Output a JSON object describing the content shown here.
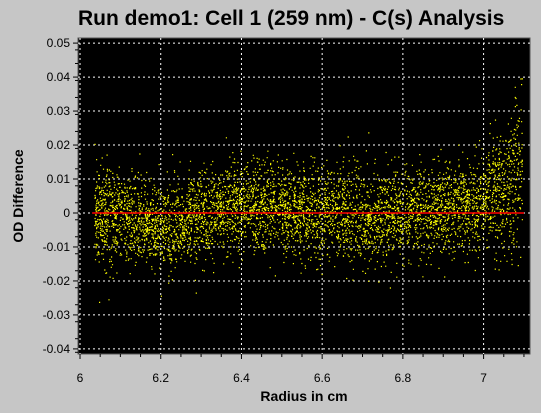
{
  "chart_data": {
    "type": "scatter",
    "title": "Run demo1: Cell 1 (259 nm) - C(s) Analysis",
    "xlabel": "Radius in cm",
    "ylabel": "OD Difference",
    "xlim": [
      5.995,
      7.115
    ],
    "ylim": [
      -0.0415,
      0.0515
    ],
    "x_ticks": [
      6,
      6.2,
      6.4,
      6.6,
      6.8,
      7
    ],
    "x_tick_labels": [
      "6",
      "6.2",
      "6.4",
      "6.6",
      "6.8",
      "7"
    ],
    "y_ticks": [
      -0.04,
      -0.03,
      -0.02,
      -0.01,
      0,
      0.01,
      0.02,
      0.03,
      0.04,
      0.05
    ],
    "y_tick_labels": [
      "-0.04",
      "-0.03",
      "-0.02",
      "-0.01",
      "0",
      "0.01",
      "0.02",
      "0.03",
      "0.04",
      "0.05"
    ],
    "grid": true,
    "series": [
      {
        "style": "points",
        "color": "#ffff00",
        "x_range": [
          6.035,
          7.095
        ],
        "center_curve": [
          [
            6.04,
            0.0
          ],
          [
            6.1,
            -0.001
          ],
          [
            6.2,
            -0.004
          ],
          [
            6.3,
            -0.001
          ],
          [
            6.4,
            0.002
          ],
          [
            6.5,
            0.001
          ],
          [
            6.6,
            0.0
          ],
          [
            6.7,
            -0.001
          ],
          [
            6.8,
            0.0
          ],
          [
            6.9,
            0.001
          ],
          [
            7.0,
            0.004
          ],
          [
            7.05,
            0.007
          ],
          [
            7.09,
            0.013
          ]
        ],
        "spread_sd": 0.0065
      },
      {
        "style": "line",
        "color": "#ff0000",
        "x": [
          6.03,
          7.1
        ],
        "y": [
          0,
          0
        ]
      }
    ]
  }
}
